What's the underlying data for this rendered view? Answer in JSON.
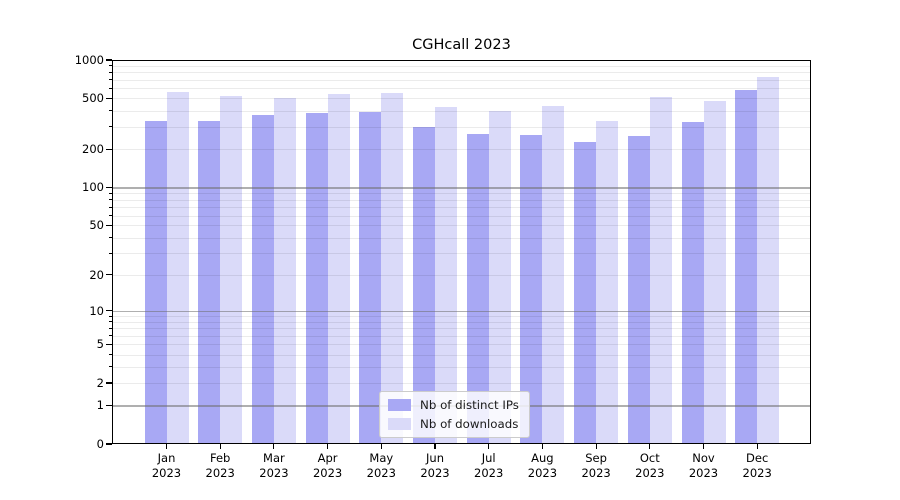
{
  "chart_data": {
    "type": "bar",
    "title": "CGHcall 2023",
    "categories": [
      "Jan",
      "Feb",
      "Mar",
      "Apr",
      "May",
      "Jun",
      "Jul",
      "Aug",
      "Sep",
      "Oct",
      "Nov",
      "Dec"
    ],
    "x_year_label": "2023",
    "series": [
      {
        "name": "Nb of distinct IPs",
        "color": "#a8a8f4",
        "values": [
          334,
          331,
          370,
          382,
          390,
          300,
          262,
          257,
          230,
          255,
          328,
          580
        ]
      },
      {
        "name": "Nb of downloads",
        "color": "#dadaf9",
        "values": [
          565,
          525,
          505,
          540,
          550,
          428,
          396,
          434,
          333,
          515,
          478,
          735
        ]
      }
    ],
    "yscale": "log1p",
    "ylim": [
      0,
      1000
    ],
    "yticks": {
      "values": [
        0,
        1,
        2,
        5,
        10,
        20,
        50,
        100,
        200,
        500,
        1000
      ],
      "labels": [
        "0",
        "1",
        "2",
        "5",
        "10",
        "20",
        "50",
        "100",
        "200",
        "500",
        "1000"
      ]
    },
    "major_grid_values": [
      1,
      10,
      100,
      1000
    ],
    "minor_grid_values": [
      2,
      3,
      4,
      5,
      6,
      7,
      8,
      9,
      20,
      30,
      40,
      50,
      60,
      70,
      80,
      90,
      200,
      300,
      400,
      500,
      600,
      700,
      800,
      900
    ],
    "grid": true,
    "legend_position": "lower center"
  }
}
